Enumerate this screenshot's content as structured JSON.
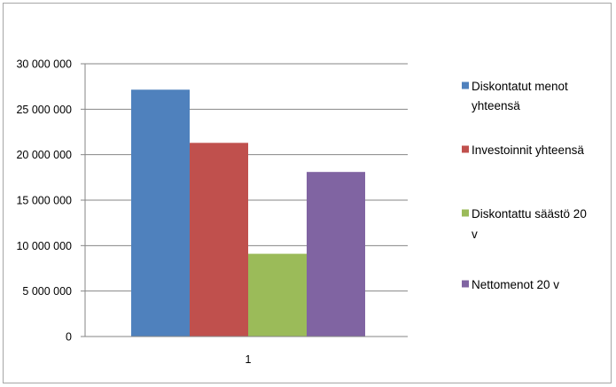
{
  "chart_data": {
    "type": "bar",
    "categories": [
      "1"
    ],
    "series": [
      {
        "name": "Diskontatut menot yhteensä",
        "values": [
          27150000
        ],
        "color": "#4f81bd"
      },
      {
        "name": "Investoinnit yhteensä",
        "values": [
          21300000
        ],
        "color": "#c0504d"
      },
      {
        "name": "Diskontattu säästö 20 v",
        "values": [
          9100000
        ],
        "color": "#9bbb59"
      },
      {
        "name": "Nettomenot 20 v",
        "values": [
          18100000
        ],
        "color": "#8064a2"
      }
    ],
    "y_ticks": [
      "0",
      "5 000 000",
      "10 000 000",
      "15 000 000",
      "20 000 000",
      "25 000 000",
      "30 000 000"
    ],
    "ylim": [
      0,
      30000000
    ],
    "grid": true,
    "legend_position": "right",
    "title": "",
    "xlabel": "",
    "ylabel": ""
  }
}
